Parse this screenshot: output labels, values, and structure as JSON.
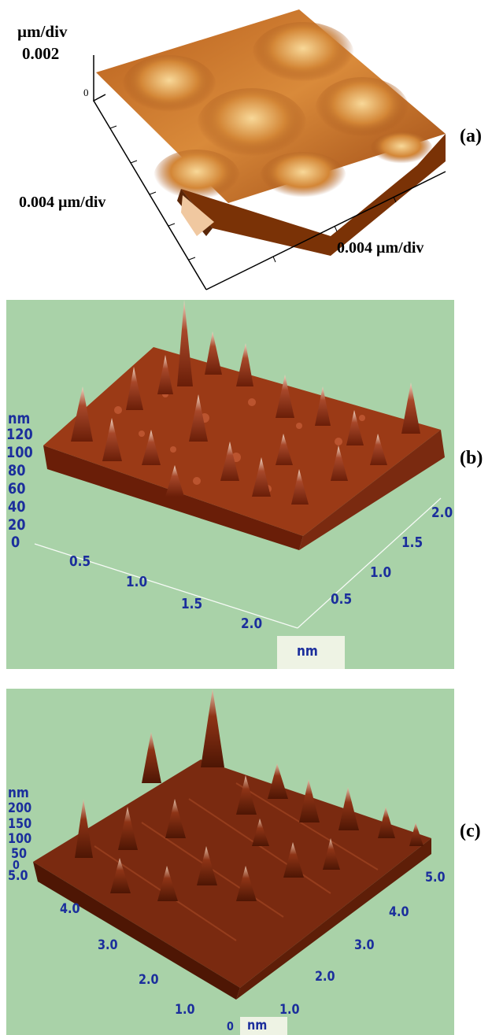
{
  "panels": {
    "a": {
      "letter": "(a)",
      "z_unit": "µm/div",
      "z_value": "0.002",
      "z_zero": "0",
      "x_label": "0.004 µm/div",
      "y_label": "0.004 µm/div",
      "colors": {
        "surface": "#c8762c",
        "highlight": "#f6d08a",
        "shadow": "#5a2608",
        "side": "#8a3d0e"
      }
    },
    "b": {
      "letter": "(b)",
      "z_unit": "nm",
      "z_ticks": [
        "120",
        "100",
        "80",
        "60",
        "40",
        "20",
        "0"
      ],
      "x_ticks": [
        "0.5",
        "1.0",
        "1.5",
        "2.0"
      ],
      "y_ticks": [
        "0.5",
        "1.0",
        "1.5",
        "2.0"
      ],
      "axis_unit": "nm",
      "colors": {
        "background": "#a9d2a8",
        "surface": "#9b3a16",
        "peak": "#e8c9b0"
      }
    },
    "c": {
      "letter": "(c)",
      "z_unit": "nm",
      "z_ticks": [
        "200",
        "150",
        "100",
        "50",
        "0"
      ],
      "x_ticks": [
        "5.0",
        "4.0",
        "3.0",
        "2.0",
        "1.0"
      ],
      "y_ticks": [
        "1.0",
        "2.0",
        "3.0",
        "4.0",
        "5.0"
      ],
      "origin": "0",
      "axis_unit": "nm",
      "colors": {
        "background": "#a9d2a8",
        "surface": "#7a2a10",
        "peak": "#d9b8a0"
      }
    }
  }
}
